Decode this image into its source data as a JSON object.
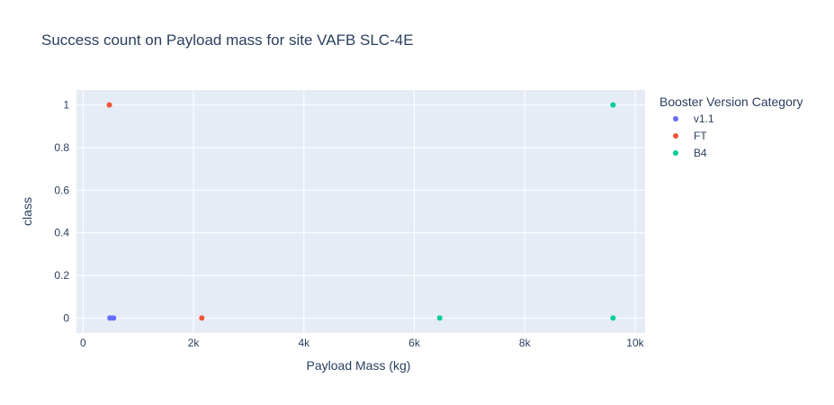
{
  "chart_data": {
    "type": "scatter",
    "title": "Success count on Payload mass for site VAFB SLC-4E",
    "xlabel": "Payload Mass (kg)",
    "ylabel": "class",
    "xlim": [
      -120,
      10180
    ],
    "ylim": [
      -0.07,
      1.07
    ],
    "x_ticks": [
      0,
      2000,
      4000,
      6000,
      8000,
      10000
    ],
    "x_tick_labels": [
      "0",
      "2k",
      "4k",
      "6k",
      "8k",
      "10k"
    ],
    "y_ticks": [
      0,
      0.2,
      0.4,
      0.6,
      0.8,
      1
    ],
    "y_tick_labels": [
      "0",
      "0.2",
      "0.4",
      "0.6",
      "0.8",
      "1"
    ],
    "grid": true,
    "legend_title": "Booster Version Category",
    "legend_position": "right",
    "series": [
      {
        "name": "v1.1",
        "color": "#636efa",
        "points": [
          [
            485,
            0
          ],
          [
            500,
            0
          ],
          [
            553,
            0
          ]
        ]
      },
      {
        "name": "FT",
        "color": "#ef553b",
        "points": [
          [
            475,
            1
          ],
          [
            2150,
            0
          ]
        ]
      },
      {
        "name": "B4",
        "color": "#00cc96",
        "points": [
          [
            6460,
            0
          ],
          [
            9600,
            1
          ],
          [
            9600,
            0
          ]
        ]
      }
    ]
  }
}
